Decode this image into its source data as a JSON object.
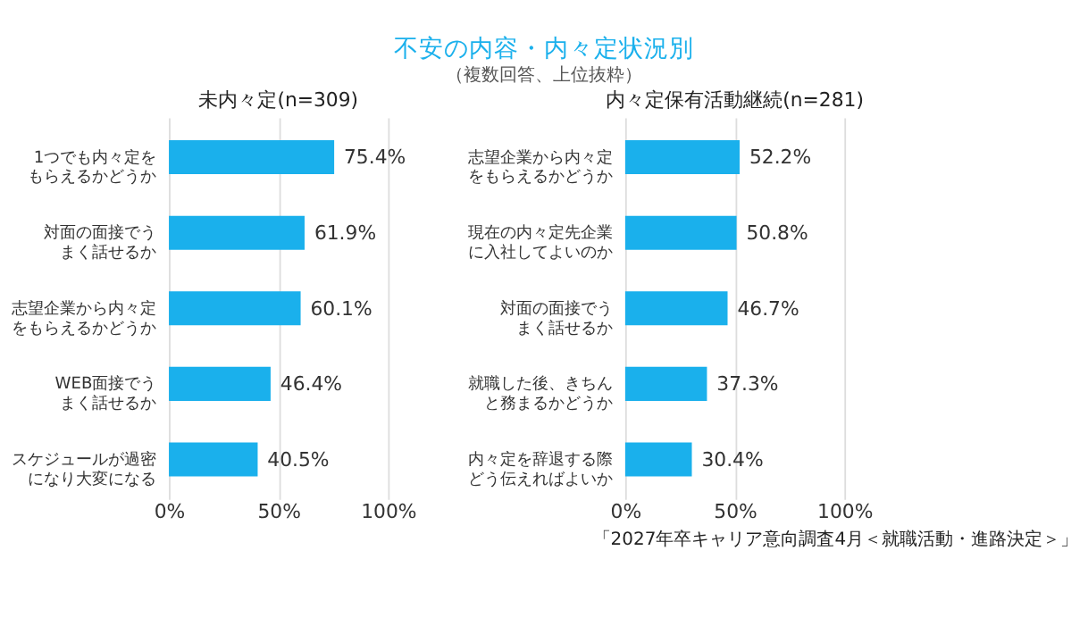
{
  "chart_data": [
    {
      "type": "bar",
      "orientation": "horizontal",
      "title": "未内々定(n=309)",
      "annotations": [
        "不安の内容・内々定状況別",
        "（複数回答、上位抜粋）"
      ],
      "categories": [
        "1つでも内々定をもらえるかどうか",
        "対面の面接でうまく話せるか",
        "志望企業から内々定をもらえるかどうか",
        "WEB面接でうまく話せるか",
        "スケジュールが過密になり大変になる"
      ],
      "values": [
        75.4,
        61.9,
        60.1,
        46.4,
        40.5
      ],
      "value_labels": [
        "75.4%",
        "61.9%",
        "60.1%",
        "46.4%",
        "40.5%"
      ],
      "color": "#1ab0ec",
      "xlim": [
        0,
        100
      ],
      "xticks": [
        {
          "value": 0,
          "label": "0%"
        },
        {
          "value": 50,
          "label": "50%"
        },
        {
          "value": 100,
          "label": "100%"
        }
      ],
      "grid": "x"
    },
    {
      "type": "bar",
      "orientation": "horizontal",
      "title": "内々定保有活動継続(n=281)",
      "annotations": [
        "「2027年卒キャリア意向調査4月＜就職活動・進路決定＞」"
      ],
      "categories": [
        "志望企業から内々定をもらえるかどうか",
        "現在の内々定先企業に入社してよいのか",
        "対面の面接でうまく話せるか",
        "就職した後、きちんと務まるかどうか",
        "内々定を辞退する際どう伝えればよいか"
      ],
      "values": [
        52.2,
        50.8,
        46.7,
        37.3,
        30.4
      ],
      "value_labels": [
        "52.2%",
        "50.8%",
        "46.7%",
        "37.3%",
        "30.4%"
      ],
      "color": "#1ab0ec",
      "xlim": [
        0,
        100
      ],
      "xticks": [
        {
          "value": 0,
          "label": "0%"
        },
        {
          "value": 50,
          "label": "50%"
        },
        {
          "value": 100,
          "label": "100%"
        }
      ],
      "grid": "x"
    }
  ]
}
